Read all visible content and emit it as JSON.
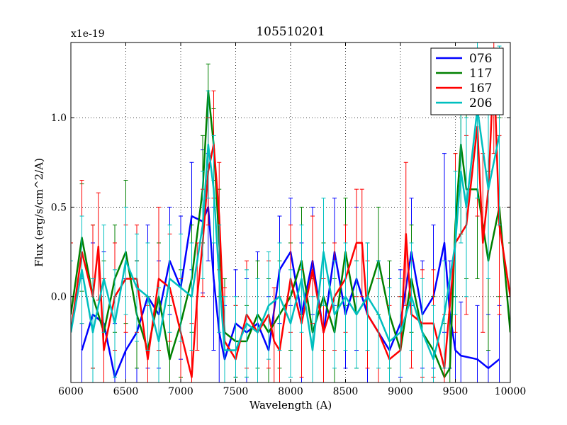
{
  "chart_data": {
    "type": "line",
    "title": "105510201",
    "xlabel": "Wavelength (A)",
    "ylabel": "Flux (erg/s/cm^2/A)",
    "y_multiplier": "x1e-19",
    "xlim": [
      6000,
      10000
    ],
    "ylim": [
      -0.48,
      1.42
    ],
    "xticks": [
      6000,
      6500,
      7000,
      7500,
      8000,
      8500,
      9000,
      9500,
      10000
    ],
    "yticks": [
      0.0,
      0.5,
      1.0
    ],
    "ytick_labels": [
      "0.0",
      "0.5",
      "1.0"
    ],
    "grid": true,
    "legend_position": "top-right",
    "series": [
      {
        "name": "076",
        "color": "#0000ff",
        "x": [
          6100,
          6200,
          6300,
          6400,
          6500,
          6600,
          6700,
          6800,
          6900,
          7000,
          7100,
          7200,
          7250,
          7300,
          7350,
          7400,
          7500,
          7600,
          7700,
          7800,
          7900,
          8000,
          8100,
          8200,
          8300,
          8400,
          8500,
          8600,
          8700,
          8800,
          8900,
          9000,
          9100,
          9200,
          9300,
          9400,
          9450,
          9500,
          9550,
          9700,
          9800,
          9900
        ],
        "y": [
          -0.3,
          -0.1,
          -0.15,
          -0.45,
          -0.3,
          -0.2,
          0.0,
          -0.1,
          0.2,
          0.05,
          0.45,
          0.42,
          0.5,
          0.1,
          -0.2,
          -0.35,
          -0.15,
          -0.2,
          -0.15,
          -0.3,
          0.15,
          0.25,
          -0.1,
          0.2,
          -0.2,
          0.25,
          -0.1,
          0.1,
          -0.1,
          -0.2,
          -0.3,
          -0.15,
          0.25,
          -0.1,
          0.0,
          0.3,
          -0.1,
          -0.3,
          -0.33,
          -0.35,
          -0.4,
          -0.35
        ],
        "err": [
          0.4,
          0.4,
          0.4,
          0.3,
          0.4,
          0.4,
          0.4,
          0.3,
          0.3,
          0.4,
          0.3,
          0.4,
          0.3,
          0.4,
          0.4,
          0.3,
          0.3,
          0.3,
          0.4,
          0.3,
          0.3,
          0.3,
          0.4,
          0.3,
          0.3,
          0.3,
          0.3,
          0.4,
          0.4,
          0.4,
          0.4,
          0.3,
          0.3,
          0.3,
          0.4,
          0.5,
          0.3,
          0.3,
          0.3,
          0.3,
          0.3,
          0.3
        ]
      },
      {
        "name": "117",
        "color": "#008000",
        "x": [
          6000,
          6100,
          6200,
          6300,
          6400,
          6500,
          6600,
          6700,
          6800,
          6900,
          7000,
          7100,
          7200,
          7250,
          7300,
          7350,
          7400,
          7500,
          7600,
          7700,
          7800,
          7900,
          8000,
          8100,
          8200,
          8300,
          8400,
          8500,
          8600,
          8700,
          8800,
          8900,
          9000,
          9100,
          9200,
          9300,
          9400,
          9450,
          9500,
          9550,
          9600,
          9700,
          9800,
          9900,
          10000
        ],
        "y": [
          -0.1,
          0.33,
          0.0,
          -0.2,
          0.1,
          0.25,
          -0.1,
          -0.3,
          0.0,
          -0.35,
          -0.15,
          0.1,
          0.6,
          1.15,
          0.85,
          0.3,
          -0.2,
          -0.25,
          -0.25,
          -0.1,
          -0.2,
          -0.1,
          0.0,
          0.2,
          -0.2,
          0.0,
          -0.2,
          0.25,
          -0.1,
          0.0,
          0.2,
          -0.1,
          -0.3,
          0.1,
          -0.2,
          -0.3,
          -0.45,
          -0.4,
          0.4,
          0.85,
          0.6,
          0.6,
          0.2,
          0.5,
          -0.2
        ],
        "err": [
          0.4,
          0.3,
          0.4,
          0.4,
          0.3,
          0.4,
          0.3,
          0.3,
          0.3,
          0.3,
          0.3,
          0.3,
          0.3,
          0.15,
          0.2,
          0.3,
          0.3,
          0.2,
          0.2,
          0.3,
          0.3,
          0.3,
          0.3,
          0.3,
          0.3,
          0.3,
          0.3,
          0.3,
          0.3,
          0.3,
          0.3,
          0.3,
          0.3,
          0.3,
          0.3,
          0.3,
          0.3,
          0.3,
          0.4,
          0.5,
          0.5,
          0.5,
          0.5,
          0.5,
          0.5
        ]
      },
      {
        "name": "167",
        "color": "#ff0000",
        "x": [
          6000,
          6100,
          6200,
          6250,
          6300,
          6400,
          6500,
          6600,
          6700,
          6800,
          6900,
          7000,
          7100,
          7150,
          7200,
          7250,
          7300,
          7350,
          7400,
          7500,
          7600,
          7700,
          7800,
          7850,
          7900,
          8000,
          8100,
          8200,
          8300,
          8400,
          8500,
          8600,
          8650,
          8700,
          8800,
          8900,
          9000,
          9050,
          9100,
          9200,
          9300,
          9400,
          9500,
          9600,
          9700,
          9750,
          9800,
          9850,
          9900,
          10000
        ],
        "y": [
          -0.2,
          0.25,
          0.0,
          0.28,
          -0.3,
          0.0,
          0.1,
          0.1,
          -0.35,
          0.1,
          0.05,
          -0.2,
          -0.45,
          0.0,
          0.3,
          0.7,
          0.85,
          0.45,
          -0.25,
          -0.35,
          -0.1,
          -0.2,
          -0.1,
          -0.25,
          -0.3,
          0.1,
          -0.15,
          0.15,
          -0.2,
          0.0,
          0.1,
          0.3,
          0.3,
          -0.1,
          -0.2,
          -0.35,
          -0.3,
          0.35,
          -0.1,
          -0.15,
          -0.15,
          -0.4,
          0.3,
          0.4,
          0.95,
          0.3,
          0.6,
          1.3,
          0.4,
          0.0
        ],
        "err": [
          0.5,
          0.4,
          0.4,
          0.3,
          0.4,
          0.3,
          0.3,
          0.3,
          0.3,
          0.4,
          0.3,
          0.3,
          0.3,
          0.3,
          0.3,
          0.3,
          0.3,
          0.3,
          0.3,
          0.3,
          0.3,
          0.3,
          0.3,
          0.3,
          0.3,
          0.3,
          0.3,
          0.3,
          0.3,
          0.3,
          0.3,
          0.3,
          0.3,
          0.3,
          0.3,
          0.3,
          0.3,
          0.4,
          0.3,
          0.3,
          0.3,
          0.3,
          0.5,
          0.5,
          0.5,
          0.5,
          0.5,
          0.5,
          0.5,
          0.5
        ]
      },
      {
        "name": "206",
        "color": "#00bfbf",
        "x": [
          6000,
          6100,
          6200,
          6300,
          6400,
          6500,
          6600,
          6700,
          6800,
          6900,
          7000,
          7100,
          7200,
          7250,
          7300,
          7350,
          7400,
          7500,
          7600,
          7700,
          7800,
          7900,
          8000,
          8100,
          8200,
          8300,
          8400,
          8500,
          8600,
          8700,
          8800,
          8900,
          9000,
          9100,
          9200,
          9300,
          9400,
          9500,
          9550,
          9600,
          9700,
          9800,
          9900
        ],
        "y": [
          -0.2,
          0.15,
          -0.2,
          0.1,
          -0.15,
          0.2,
          0.05,
          0.0,
          -0.25,
          0.1,
          0.05,
          0.0,
          0.4,
          0.85,
          0.6,
          0.1,
          -0.3,
          -0.3,
          -0.15,
          -0.2,
          -0.05,
          0.0,
          -0.15,
          0.1,
          -0.3,
          0.25,
          -0.1,
          0.0,
          -0.1,
          0.0,
          -0.1,
          -0.25,
          -0.2,
          0.0,
          -0.2,
          -0.35,
          -0.1,
          0.3,
          0.7,
          0.5,
          1.05,
          0.6,
          0.9
        ],
        "err": [
          0.4,
          0.3,
          0.3,
          0.3,
          0.3,
          0.3,
          0.3,
          0.3,
          0.3,
          0.3,
          0.3,
          0.3,
          0.3,
          0.3,
          0.3,
          0.3,
          0.3,
          0.3,
          0.3,
          0.3,
          0.3,
          0.3,
          0.3,
          0.3,
          0.3,
          0.3,
          0.3,
          0.3,
          0.3,
          0.3,
          0.3,
          0.3,
          0.3,
          0.3,
          0.3,
          0.3,
          0.3,
          0.4,
          0.4,
          0.5,
          0.5,
          0.5,
          0.5
        ]
      }
    ]
  }
}
